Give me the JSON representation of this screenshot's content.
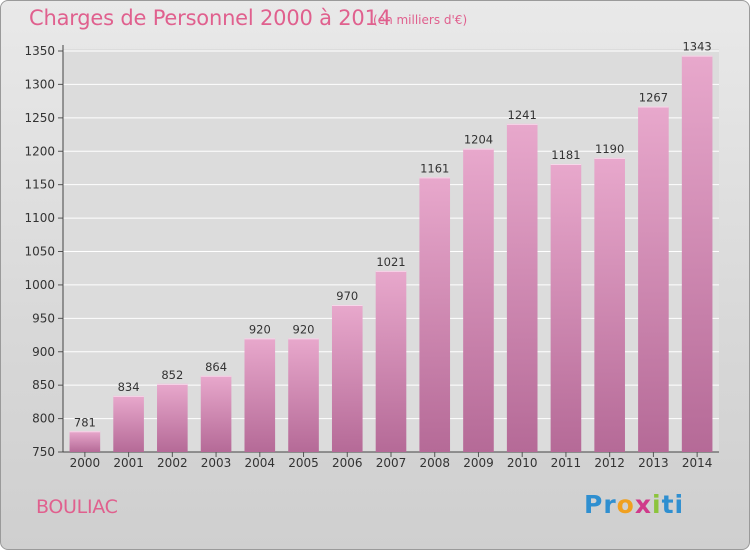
{
  "header": {
    "title": "Charges de Personnel 2000 à 2014",
    "subtitle": "(en milliers d'€)"
  },
  "footer": {
    "city": "BOULIAC",
    "logo": [
      "Pr",
      "o",
      "x",
      "i",
      "ti"
    ]
  },
  "colors": {
    "accent": "#e0608e",
    "bar_top": "#e8a8cc",
    "bar_bottom": "#b56a97"
  },
  "chart_data": {
    "type": "bar",
    "title": "Charges de Personnel 2000 à 2014",
    "subtitle": "(en milliers d'€)",
    "categories": [
      "2000",
      "2001",
      "2002",
      "2003",
      "2004",
      "2005",
      "2006",
      "2007",
      "2008",
      "2009",
      "2010",
      "2011",
      "2012",
      "2013",
      "2014"
    ],
    "values": [
      781,
      834,
      852,
      864,
      920,
      920,
      970,
      1021,
      1161,
      1204,
      1241,
      1181,
      1190,
      1267,
      1343
    ],
    "ylim": [
      750,
      1350
    ],
    "yticks": [
      750,
      800,
      850,
      900,
      950,
      1000,
      1050,
      1100,
      1150,
      1200,
      1250,
      1300,
      1350
    ],
    "grid": true,
    "legend": "none"
  }
}
